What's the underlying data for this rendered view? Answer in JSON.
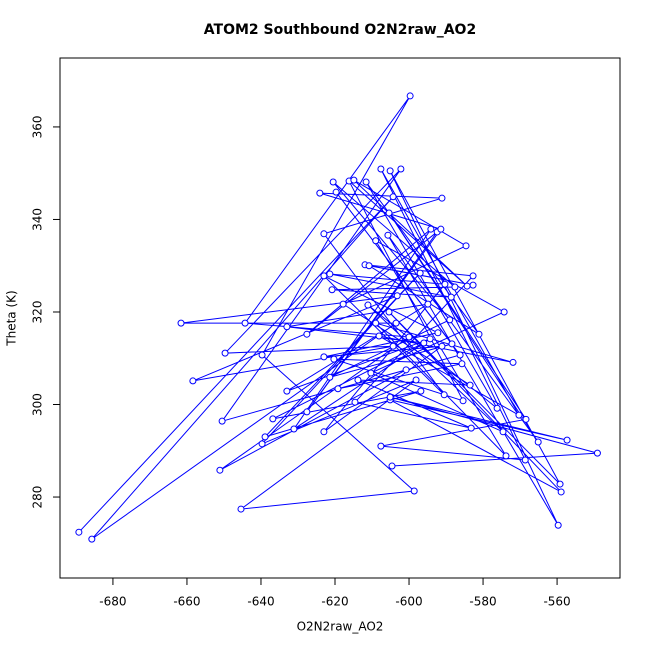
{
  "chart_data": {
    "type": "line",
    "title": "ATOM2 Southbound O2N2raw_AO2",
    "xlabel": "O2N2raw_AO2",
    "ylabel": "Theta (K)",
    "color": "#0000ff",
    "marker": "open-circle",
    "x": [
      -689.2,
      -604.3,
      -685.7,
      -603.5,
      -661.6,
      -603.2,
      -658.4,
      -604.3,
      -649.7,
      -602.2,
      -650.5,
      -600.8,
      -651.1,
      -600.0,
      -644.3,
      -599.7,
      -639.7,
      -598.6,
      -645.4,
      -598.1,
      -639.7,
      -597.0,
      -638.9,
      -596.8,
      -636.8,
      -596.0,
      -633.0,
      -594.9,
      -633.0,
      -594.3,
      -631.1,
      -594.1,
      -627.6,
      -592.4,
      -627.6,
      -591.4,
      -624.1,
      -591.1,
      -623.0,
      -590.5,
      -623.0,
      -592.2,
      -623.0,
      -591.1,
      -623.0,
      -590.3,
      -621.4,
      -588.6,
      -620.8,
      -587.6,
      -620.5,
      -589.0,
      -621.4,
      -588.4,
      -619.7,
      -586.2,
      -619.2,
      -585.7,
      -620.3,
      -585.4,
      -616.2,
      -584.3,
      -614.9,
      -584.6,
      -617.8,
      -583.5,
      -613.8,
      -583.2,
      -614.6,
      -582.7,
      -611.9,
      -582.7,
      -610.8,
      -581.1,
      -611.6,
      -576.2,
      -611.1,
      -574.6,
      -610.3,
      -574.3,
      -609.0,
      -573.8,
      -609.0,
      -571.9,
      -608.1,
      -570.3,
      -607.6,
      -568.6,
      -607.6,
      -568.4,
      -605.4,
      -565.1,
      -605.7,
      -559.7,
      -605.1,
      -559.2,
      -605.4,
      -558.9,
      -605.1,
      -557.3,
      -605.1,
      -549.1,
      -604.6
    ],
    "values": [
      272.4,
      344.9,
      270.9,
      317.6,
      317.6,
      323.5,
      305.1,
      312.6,
      311.1,
      350.9,
      296.4,
      307.5,
      285.8,
      314.6,
      317.6,
      366.7,
      310.7,
      281.3,
      277.4,
      305.3,
      291.5,
      328.4,
      293.0,
      302.9,
      296.9,
      313.3,
      316.8,
      321.7,
      302.9,
      314.2,
      294.7,
      337.9,
      315.2,
      337.3,
      298.4,
      337.9,
      345.7,
      344.6,
      336.9,
      302.1,
      327.8,
      315.5,
      310.3,
      312.6,
      294.1,
      326.0,
      328.2,
      323.2,
      324.8,
      325.4,
      348.1,
      318.3,
      305.9,
      313.1,
      345.9,
      310.7,
      303.4,
      308.8,
      309.8,
      300.8,
      348.3,
      325.6,
      348.5,
      334.3,
      321.7,
      304.2,
      305.3,
      294.9,
      300.5,
      327.8,
      330.2,
      325.8,
      330.0,
      315.2,
      348.1,
      299.2,
      321.5,
      294.1,
      306.8,
      320.0,
      335.4,
      288.9,
      317.6,
      309.1,
      314.8,
      297.7,
      350.9,
      288.0,
      291.0,
      296.8,
      341.4,
      291.9,
      336.6,
      273.9,
      350.5,
      282.8,
      320.0,
      281.1,
      301.0,
      292.3,
      301.6,
      289.5,
      286.7
    ],
    "xlim": [
      -694.3,
      -543
    ],
    "ylim": [
      262.5,
      374.9
    ],
    "xticks": [
      -680,
      -660,
      -640,
      -620,
      -600,
      -580,
      -560
    ],
    "yticks": [
      280,
      300,
      320,
      340,
      360
    ]
  }
}
